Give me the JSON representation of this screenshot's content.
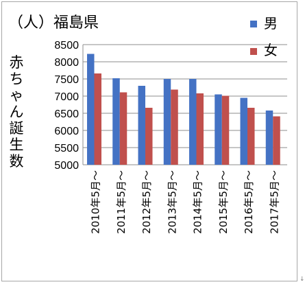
{
  "chart_data": {
    "type": "bar",
    "title": "（人）福島県",
    "ylabel": "赤ちゃん誕生数",
    "categories": [
      "2010年5月～",
      "2011年5月～",
      "2012年5月～",
      "2013年5月～",
      "2014年5月～",
      "2015年5月～",
      "2016年5月～",
      "2017年5月～"
    ],
    "series": [
      {
        "name": "男",
        "color": "#4472c4",
        "values": [
          8230,
          7520,
          7300,
          7500,
          7500,
          7050,
          6950,
          6580
        ]
      },
      {
        "name": "女",
        "color": "#c0504d",
        "values": [
          7660,
          7110,
          6660,
          7190,
          7080,
          7010,
          6660,
          6410
        ]
      }
    ],
    "ylim": [
      5000,
      8500
    ],
    "yticks": [
      5000,
      5500,
      6000,
      6500,
      7000,
      7500,
      8000,
      8500
    ],
    "grid": true,
    "legend_position": "top-right"
  },
  "corner_mark": "↓"
}
